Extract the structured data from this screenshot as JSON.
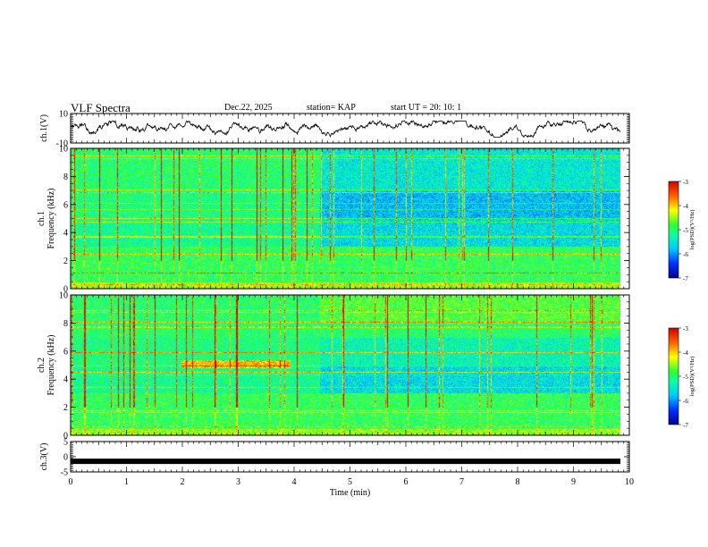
{
  "header": {
    "title": "VLF Spectra",
    "date": "Dec.22, 2025",
    "station": "station= KAP",
    "start_ut": "start UT =  20: 10: 1"
  },
  "chart_data": [
    {
      "type": "line",
      "name": "ch1-waveform",
      "ylabel": "ch.1(V)",
      "ylim": [
        -10,
        10
      ],
      "yticks": [
        10,
        -10
      ],
      "xlim": [
        0,
        10
      ],
      "signal": "noise oscillating roughly between -5 and 4 V around ~0 V"
    },
    {
      "type": "heatmap",
      "name": "ch1-spectrogram",
      "ylabel_line1": "ch.1",
      "ylabel_line2": "Frequency (kHz)",
      "ylim": [
        0,
        10
      ],
      "yticks": [
        0,
        2,
        4,
        6,
        8,
        10
      ],
      "xlim": [
        0,
        9.84
      ],
      "regime_change_min": 4.45,
      "colorbar": {
        "label": "log(PSD)(V²/Hz)",
        "range": [
          -7,
          -3
        ],
        "ticks": [
          -3,
          -4,
          -5,
          -6,
          -7
        ]
      }
    },
    {
      "type": "heatmap",
      "name": "ch2-spectrogram",
      "ylabel_line1": "ch.2",
      "ylabel_line2": "Frequency (kHz)",
      "ylim": [
        0,
        10
      ],
      "yticks": [
        0,
        2,
        4,
        6,
        8,
        10
      ],
      "xlim": [
        0,
        9.84
      ],
      "regime_change_min": 4.45,
      "colorbar": {
        "label": "log(PSD)(V²/Hz)",
        "range": [
          -7,
          -3
        ],
        "ticks": [
          -3,
          -4,
          -5,
          -6,
          -7
        ]
      }
    },
    {
      "type": "line",
      "name": "ch3-waveform",
      "ylabel": "ch.3(V)",
      "ylim": [
        -5,
        5
      ],
      "yticks": [
        5,
        0,
        -5
      ],
      "xlim": [
        0,
        10
      ],
      "signal": "constant thick band at about -1.5 V"
    }
  ],
  "xaxis": {
    "label": "Time (min)",
    "ticks": [
      0,
      1,
      2,
      3,
      4,
      5,
      6,
      7,
      8,
      9,
      10
    ]
  }
}
